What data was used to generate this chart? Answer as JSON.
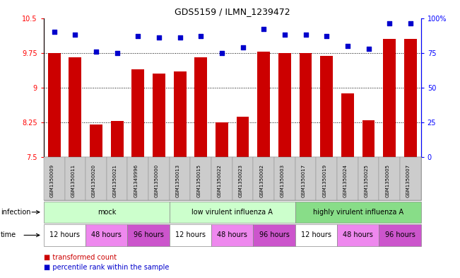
{
  "title": "GDS5159 / ILMN_1239472",
  "samples": [
    "GSM1350009",
    "GSM1350011",
    "GSM1350020",
    "GSM1350021",
    "GSM1349996",
    "GSM1350000",
    "GSM1350013",
    "GSM1350015",
    "GSM1350022",
    "GSM1350023",
    "GSM1350002",
    "GSM1350003",
    "GSM1350017",
    "GSM1350019",
    "GSM1350024",
    "GSM1350025",
    "GSM1350005",
    "GSM1350007"
  ],
  "bar_values": [
    9.75,
    9.65,
    8.2,
    8.28,
    9.4,
    9.3,
    9.35,
    9.65,
    8.25,
    8.37,
    9.78,
    9.75,
    9.75,
    9.68,
    8.88,
    8.3,
    10.05,
    10.05
  ],
  "dot_values": [
    90,
    88,
    76,
    75,
    87,
    86,
    86,
    87,
    75,
    79,
    92,
    88,
    88,
    87,
    80,
    78,
    96,
    96
  ],
  "ylim_left": [
    7.5,
    10.5
  ],
  "ylim_right": [
    0,
    100
  ],
  "yticks_left": [
    7.5,
    8.25,
    9.0,
    9.75,
    10.5
  ],
  "yticks_right": [
    0,
    25,
    50,
    75,
    100
  ],
  "ytick_labels_left": [
    "7.5",
    "8.25",
    "9",
    "9.75",
    "10.5"
  ],
  "ytick_labels_right": [
    "0",
    "25",
    "50",
    "75",
    "100%"
  ],
  "hlines": [
    8.25,
    9.0,
    9.75
  ],
  "bar_color": "#cc0000",
  "dot_color": "#0000cc",
  "sample_box_color": "#cccccc",
  "infection_regions": [
    {
      "label": "mock",
      "start": 0,
      "end": 5,
      "color": "#ccffcc"
    },
    {
      "label": "low virulent influenza A",
      "start": 6,
      "end": 11,
      "color": "#ccffcc"
    },
    {
      "label": "highly virulent influenza A",
      "start": 12,
      "end": 17,
      "color": "#88dd88"
    }
  ],
  "time_regions": [
    {
      "label": "12 hours",
      "start": 0,
      "end": 1,
      "color": "#ffffff"
    },
    {
      "label": "48 hours",
      "start": 2,
      "end": 3,
      "color": "#ee88ee"
    },
    {
      "label": "96 hours",
      "start": 4,
      "end": 5,
      "color": "#cc55cc"
    },
    {
      "label": "12 hours",
      "start": 6,
      "end": 7,
      "color": "#ffffff"
    },
    {
      "label": "48 hours",
      "start": 8,
      "end": 9,
      "color": "#ee88ee"
    },
    {
      "label": "96 hours",
      "start": 10,
      "end": 11,
      "color": "#cc55cc"
    },
    {
      "label": "12 hours",
      "start": 12,
      "end": 13,
      "color": "#ffffff"
    },
    {
      "label": "48 hours",
      "start": 14,
      "end": 15,
      "color": "#ee88ee"
    },
    {
      "label": "96 hours",
      "start": 16,
      "end": 17,
      "color": "#cc55cc"
    }
  ],
  "legend_items": [
    {
      "label": "transformed count",
      "color": "#cc0000"
    },
    {
      "label": "percentile rank within the sample",
      "color": "#0000cc"
    }
  ]
}
